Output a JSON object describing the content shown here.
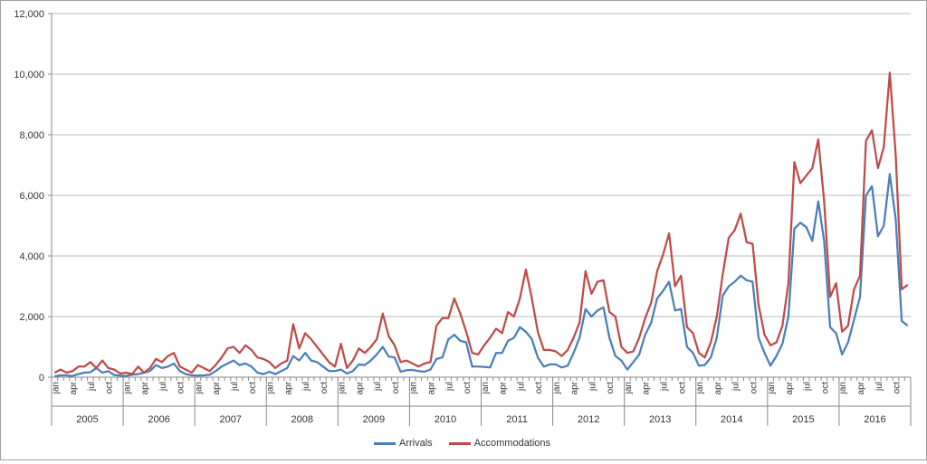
{
  "chart_data": {
    "type": "line",
    "title": "",
    "xlabel": "",
    "ylabel": "",
    "ylim": [
      0,
      12000
    ],
    "y_ticks": [
      "0",
      "2,000",
      "4,000",
      "6,000",
      "8,000",
      "10,000",
      "12,000"
    ],
    "y_tick_values": [
      0,
      2000,
      4000,
      6000,
      8000,
      10000,
      12000
    ],
    "gridlines": true,
    "legend_position": "bottom",
    "years": [
      "2005",
      "2006",
      "2007",
      "2008",
      "2009",
      "2010",
      "2011",
      "2012",
      "2013",
      "2014",
      "2015",
      "2016"
    ],
    "month_labels": [
      "jan",
      "apr",
      "jul",
      "oct"
    ],
    "months_per_year": 12,
    "series": [
      {
        "name": "Arrivals",
        "color": "#4a7ebb",
        "values": [
          30,
          60,
          60,
          40,
          100,
          150,
          160,
          300,
          150,
          200,
          70,
          50,
          40,
          80,
          100,
          150,
          200,
          400,
          300,
          350,
          450,
          200,
          100,
          60,
          50,
          60,
          80,
          200,
          350,
          450,
          550,
          400,
          450,
          350,
          150,
          100,
          180,
          100,
          200,
          300,
          700,
          550,
          800,
          550,
          500,
          350,
          200,
          200,
          250,
          120,
          200,
          420,
          400,
          550,
          750,
          1000,
          680,
          650,
          180,
          230,
          240,
          200,
          180,
          250,
          600,
          650,
          1250,
          1400,
          1200,
          1150,
          350,
          350,
          340,
          320,
          800,
          800,
          1200,
          1300,
          1650,
          1500,
          1250,
          650,
          350,
          420,
          420,
          320,
          380,
          800,
          1300,
          2250,
          2000,
          2200,
          2300,
          1300,
          700,
          550,
          250,
          500,
          750,
          1400,
          1800,
          2600,
          2850,
          3150,
          2200,
          2250,
          1000,
          800,
          380,
          400,
          650,
          1300,
          2700,
          3000,
          3150,
          3350,
          3200,
          3150,
          1300,
          800,
          380,
          700,
          1100,
          2000,
          4900,
          5100,
          4950,
          4500,
          5800,
          4500,
          1650,
          1450,
          750,
          1150,
          1900,
          2650,
          6000,
          6300,
          4650,
          5000,
          6700,
          5200,
          1850,
          1700
        ]
      },
      {
        "name": "Accommodations",
        "color": "#be4b48",
        "values": [
          150,
          250,
          150,
          200,
          350,
          350,
          500,
          300,
          550,
          300,
          250,
          120,
          150,
          100,
          350,
          150,
          300,
          600,
          500,
          700,
          800,
          350,
          250,
          150,
          400,
          300,
          200,
          400,
          650,
          950,
          1000,
          800,
          1050,
          900,
          650,
          600,
          500,
          300,
          450,
          550,
          1750,
          950,
          1450,
          1250,
          1000,
          750,
          500,
          350,
          1100,
          300,
          550,
          950,
          800,
          1000,
          1250,
          2100,
          1350,
          1050,
          500,
          550,
          450,
          350,
          450,
          500,
          1700,
          1950,
          1950,
          2600,
          2100,
          1500,
          800,
          750,
          1050,
          1300,
          1600,
          1450,
          2150,
          2000,
          2600,
          3550,
          2600,
          1500,
          900,
          900,
          850,
          700,
          900,
          1300,
          1800,
          3500,
          2750,
          3150,
          3200,
          2150,
          2000,
          1000,
          800,
          850,
          1300,
          1950,
          2450,
          3500,
          4050,
          4750,
          3000,
          3350,
          1650,
          1450,
          800,
          650,
          1150,
          2000,
          3400,
          4600,
          4850,
          5400,
          4450,
          4400,
          2400,
          1400,
          1050,
          1150,
          1700,
          3100,
          7100,
          6400,
          6650,
          6900,
          7850,
          5800,
          2650,
          3100,
          1500,
          1700,
          2900,
          3350,
          7800,
          8150,
          6900,
          7600,
          10050,
          7300,
          2900,
          3050
        ]
      }
    ]
  }
}
